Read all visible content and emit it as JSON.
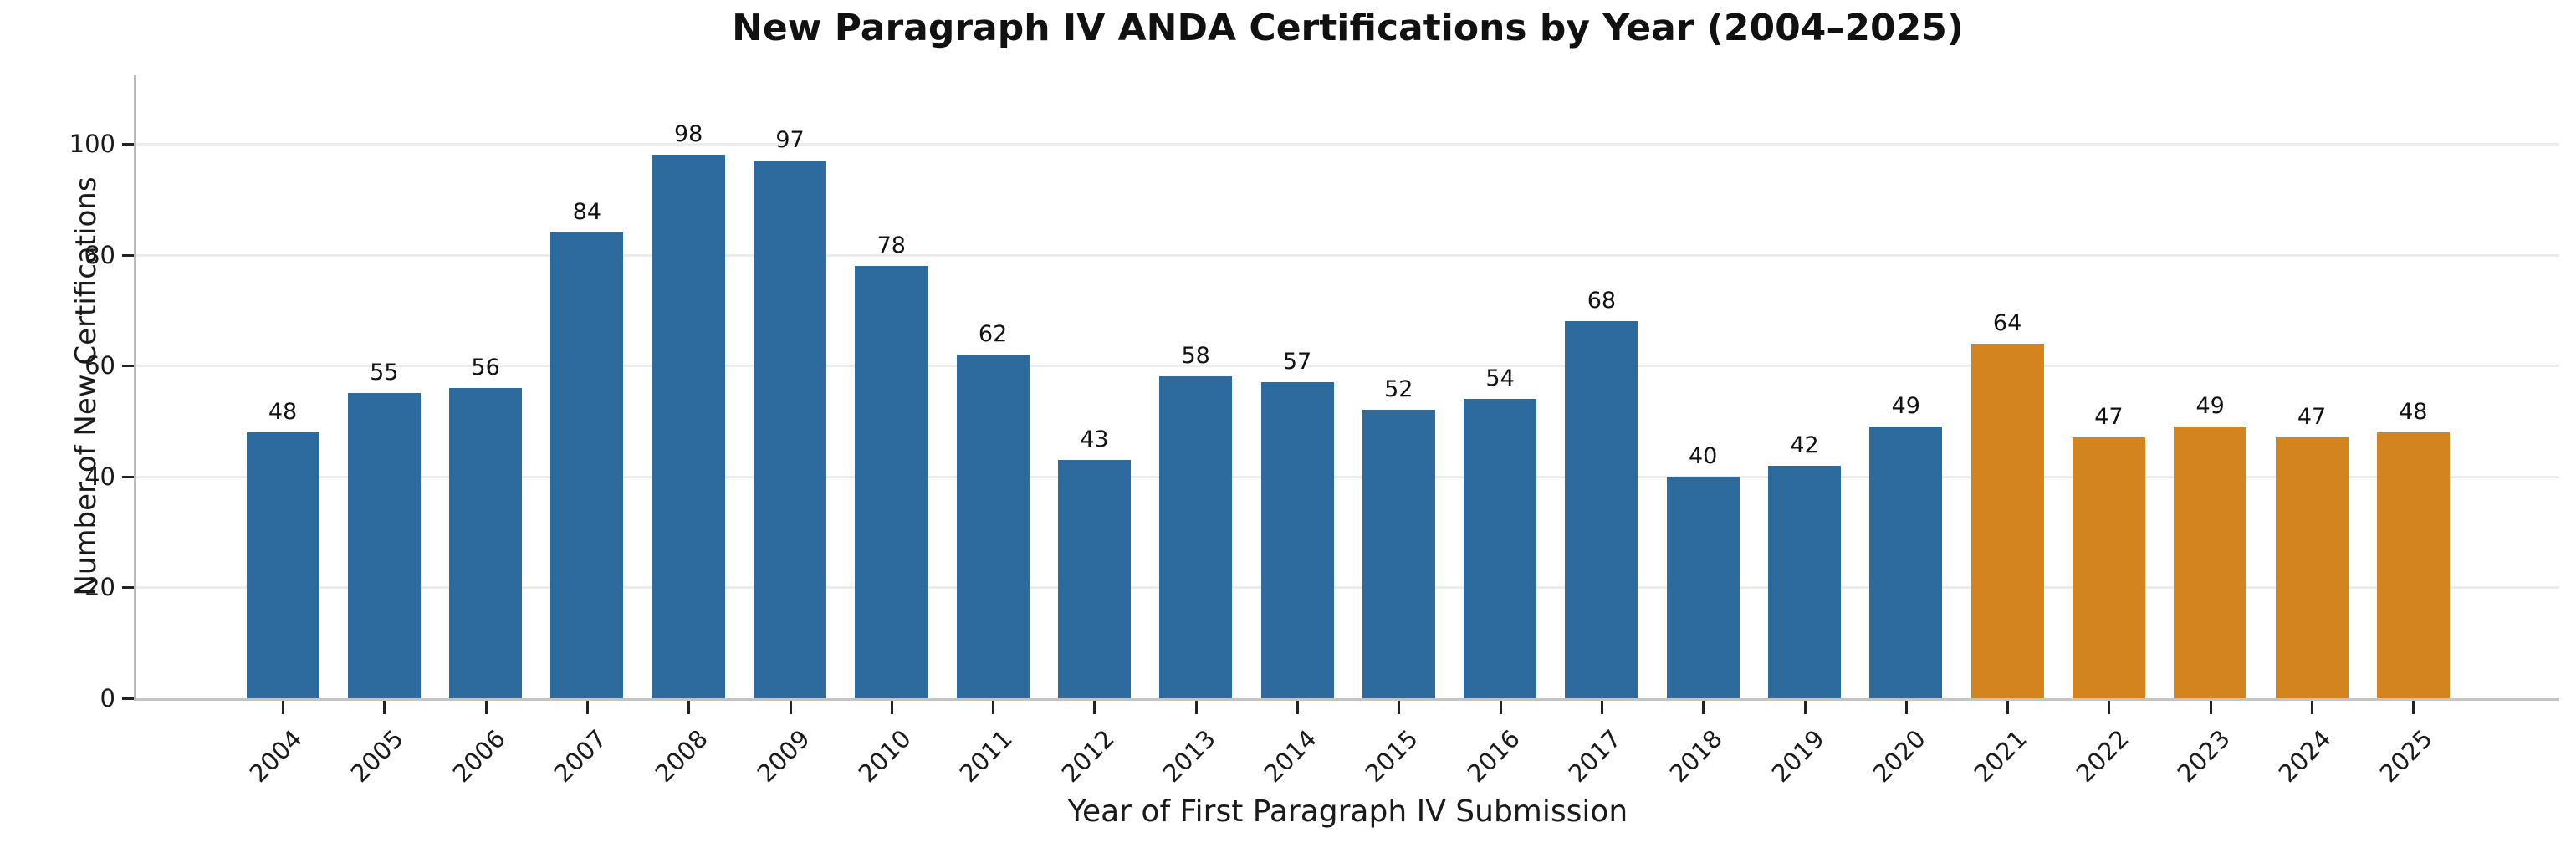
{
  "chart_data": {
    "type": "bar",
    "title": "New Paragraph IV ANDA Certifications by Year (2004–2025)",
    "xlabel": "Year of First Paragraph IV Submission",
    "ylabel": "Number of New Certifications",
    "categories": [
      "2004",
      "2005",
      "2006",
      "2007",
      "2008",
      "2009",
      "2010",
      "2011",
      "2012",
      "2013",
      "2014",
      "2015",
      "2016",
      "2017",
      "2018",
      "2019",
      "2020",
      "2021",
      "2022",
      "2023",
      "2024",
      "2025"
    ],
    "values": [
      48,
      55,
      56,
      84,
      98,
      97,
      78,
      62,
      43,
      58,
      57,
      52,
      54,
      68,
      40,
      42,
      49,
      64,
      47,
      49,
      47,
      48
    ],
    "yticks": [
      0,
      20,
      40,
      60,
      80,
      100
    ],
    "ylim": [
      0,
      112
    ],
    "grid": "horizontal",
    "legend": null,
    "value_labels": true,
    "colors": {
      "bar_default": "#2d6a9e",
      "bar_highlight": "#d4841e",
      "highlight_from_category": "2021"
    }
  }
}
